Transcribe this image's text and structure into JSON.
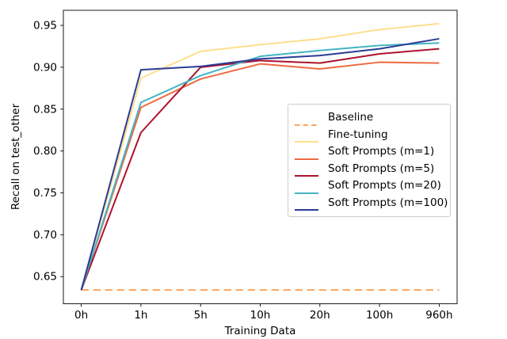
{
  "chart_data": {
    "type": "line",
    "title": "",
    "xlabel": "Training Data",
    "ylabel": "Recall on test_other",
    "categories": [
      "0h",
      "1h",
      "5h",
      "10h",
      "20h",
      "100h",
      "960h"
    ],
    "yticks": [
      "0.65",
      "0.70",
      "0.75",
      "0.80",
      "0.85",
      "0.90",
      "0.95"
    ],
    "ytick_values": [
      0.65,
      0.7,
      0.75,
      0.8,
      0.85,
      0.9,
      0.95
    ],
    "xlim_index": [
      -0.3,
      6.3
    ],
    "ylim": [
      0.6176,
      0.968
    ],
    "grid": false,
    "legend_position": "inside-center-right",
    "series": [
      {
        "name": "Baseline",
        "color": "#FAA65C",
        "dash": true,
        "values": [
          0.634,
          0.634,
          0.634,
          0.634,
          0.634,
          0.634,
          0.634
        ]
      },
      {
        "name": "Fine-tuning",
        "color": "#FEDF8D",
        "dash": false,
        "values": [
          0.634,
          0.887,
          0.919,
          0.927,
          0.934,
          0.945,
          0.952
        ]
      },
      {
        "name": "Soft Prompts (m=1)",
        "color": "#EE6A41",
        "dash": false,
        "values": [
          0.634,
          0.852,
          0.886,
          0.904,
          0.898,
          0.906,
          0.905
        ]
      },
      {
        "name": "Soft Prompts (m=5)",
        "color": "#AE122E",
        "dash": false,
        "values": [
          0.634,
          0.822,
          0.9,
          0.908,
          0.905,
          0.916,
          0.922
        ]
      },
      {
        "name": "Soft Prompts (m=20)",
        "color": "#44B5C4",
        "dash": false,
        "values": [
          0.634,
          0.858,
          0.89,
          0.913,
          0.92,
          0.926,
          0.929
        ]
      },
      {
        "name": "Soft Prompts (m=100)",
        "color": "#2C3B94",
        "dash": false,
        "values": [
          0.634,
          0.897,
          0.901,
          0.91,
          0.914,
          0.922,
          0.934
        ]
      }
    ]
  }
}
